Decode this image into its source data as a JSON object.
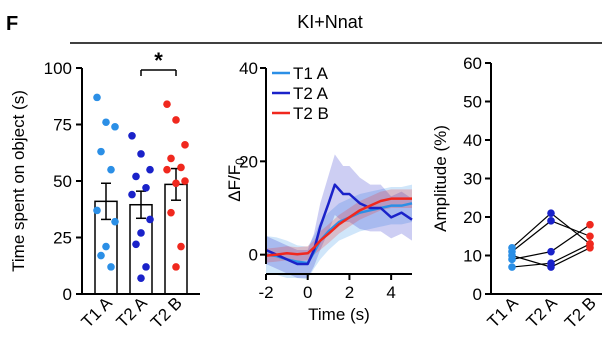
{
  "figure": {
    "panel_letter": "F",
    "group_label": "KI+Nnat"
  },
  "colors": {
    "T1 A": "#2b8fe6",
    "T2 A": "#1a22c9",
    "T2 B": "#f0281e",
    "text": "#000000"
  },
  "chart_data": [
    {
      "type": "bar",
      "categories": [
        "T1 A",
        "T2 A",
        "T2 B"
      ],
      "values": [
        41,
        39.5,
        48.5
      ],
      "sem": [
        8,
        6,
        7
      ],
      "points": [
        [
          87,
          76,
          74,
          63,
          55,
          37,
          32,
          21,
          17,
          12
        ],
        [
          70,
          62,
          55,
          52,
          47,
          44,
          33,
          27,
          22,
          12,
          7
        ],
        [
          84,
          77,
          66,
          60,
          56,
          55,
          50,
          49,
          36,
          21,
          12
        ]
      ],
      "ylabel": "Time spent on object (s)",
      "ylim": [
        0,
        100
      ],
      "yticks": [
        0,
        25,
        50,
        75,
        100
      ],
      "significance": {
        "between": [
          "T2 A",
          "T2 B"
        ],
        "label": "*"
      }
    },
    {
      "type": "line",
      "xlabel": "Time (s)",
      "ylabel": "ΔF/F0",
      "xlim": [
        -2,
        5
      ],
      "ylim": [
        -2,
        40
      ],
      "xticks": [
        -2,
        0,
        2,
        4
      ],
      "yticks": [
        0,
        20,
        40
      ],
      "legend_position": "top-left",
      "series": [
        {
          "name": "T1 A",
          "x": [
            -2,
            -1.5,
            -1,
            -0.5,
            0,
            0.3,
            0.6,
            1,
            1.5,
            2,
            2.5,
            3,
            3.5,
            4,
            4.5,
            5
          ],
          "y": [
            0,
            -0.3,
            -1,
            -1.5,
            -1.8,
            0.5,
            3,
            5,
            7,
            8,
            9,
            9.5,
            10,
            10.5,
            10.5,
            11
          ],
          "band": [
            4,
            4,
            4,
            3.5,
            3.5,
            3.5,
            4,
            4,
            4,
            4,
            4,
            4,
            4,
            4,
            4,
            4
          ]
        },
        {
          "name": "T2 A",
          "x": [
            -2,
            -1.5,
            -1,
            -0.5,
            0,
            0.3,
            0.6,
            1,
            1.3,
            1.7,
            2,
            2.5,
            3,
            3.5,
            4,
            4.5,
            5
          ],
          "y": [
            1,
            0,
            -1,
            -2,
            -2,
            1,
            6,
            11,
            15,
            13,
            13,
            11,
            10,
            10,
            8,
            9,
            7.5
          ],
          "band": [
            3,
            3,
            3,
            3,
            3,
            3.5,
            5,
            6,
            6.5,
            6,
            6,
            5.5,
            5,
            5,
            4.5,
            4.5,
            4.5
          ]
        },
        {
          "name": "T2 B",
          "x": [
            -2,
            -1.5,
            -1,
            -0.5,
            0,
            0.3,
            0.6,
            1,
            1.5,
            2,
            2.5,
            3,
            3.5,
            4,
            4.5,
            5
          ],
          "y": [
            -0.2,
            0,
            0.3,
            0.1,
            0.3,
            1.5,
            3,
            4.5,
            6.5,
            8,
            9.5,
            10.5,
            11.5,
            12,
            12,
            12
          ],
          "band": [
            1.5,
            1.5,
            1.5,
            1.5,
            1.5,
            1.5,
            2,
            2,
            2,
            2,
            2,
            2,
            2,
            2,
            2,
            2
          ]
        }
      ]
    },
    {
      "type": "scatter",
      "categories": [
        "T1 A",
        "T2 A",
        "T2 B"
      ],
      "ylabel": "Amplitude (%)",
      "ylim": [
        0,
        60
      ],
      "yticks": [
        0,
        10,
        20,
        30,
        40,
        50,
        60
      ],
      "subjects": [
        [
          12,
          21,
          13
        ],
        [
          11,
          19,
          15
        ],
        [
          9,
          11,
          18
        ],
        [
          7,
          8,
          13
        ],
        [
          10,
          7,
          12
        ]
      ]
    }
  ]
}
